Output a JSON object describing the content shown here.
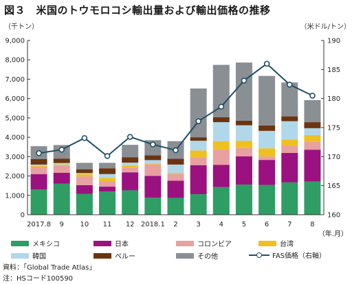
{
  "title": "図３　米国のトウモロコシ輸出量および輸出価格の推移",
  "left_unit": "（千トン）",
  "right_unit": "（米ドル/トン）",
  "x_unit": "（年.月）",
  "source": "資料：「Global Trade Atlas」",
  "note": "注：HSコード100590",
  "chart_data": {
    "type": "bar",
    "stacked": true,
    "categories": [
      "2017.8",
      "9",
      "10",
      "11",
      "12",
      "2018.1",
      "2",
      "3",
      "4",
      "5",
      "6",
      "7",
      "8"
    ],
    "ylim": [
      0,
      9000
    ],
    "y_ticks": [
      "0",
      "1,000",
      "2,000",
      "3,000",
      "4,000",
      "5,000",
      "6,000",
      "7,000",
      "8,000",
      "9,000"
    ],
    "y2lim": [
      160,
      190
    ],
    "y2_ticks": [
      "160",
      "165",
      "170",
      "175",
      "180",
      "185",
      "190"
    ],
    "grid": false,
    "series": [
      {
        "name": "メキシコ",
        "color": "#2e9e64",
        "values": [
          1300,
          1600,
          1080,
          1200,
          1260,
          880,
          870,
          1060,
          1430,
          1560,
          1540,
          1670,
          1720
        ]
      },
      {
        "name": "日本",
        "color": "#9b117f",
        "values": [
          800,
          570,
          450,
          250,
          930,
          1130,
          890,
          1500,
          1150,
          1460,
          1290,
          1520,
          1640
        ]
      },
      {
        "name": "コロンビア",
        "color": "#e8a0a0",
        "values": [
          380,
          370,
          450,
          250,
          250,
          590,
          340,
          410,
          770,
          420,
          180,
          370,
          400
        ]
      },
      {
        "name": "台湾",
        "color": "#f0c020",
        "values": [
          50,
          50,
          120,
          200,
          100,
          50,
          60,
          350,
          450,
          380,
          420,
          320,
          350
        ]
      },
      {
        "name": "韓国",
        "color": "#b0d8ea",
        "values": [
          60,
          80,
          50,
          200,
          150,
          170,
          430,
          500,
          980,
          800,
          900,
          950,
          360
        ]
      },
      {
        "name": "ペルー",
        "color": "#6b3410",
        "values": [
          280,
          230,
          200,
          300,
          280,
          250,
          300,
          180,
          260,
          240,
          280,
          250,
          310
        ]
      },
      {
        "name": "その他",
        "color": "#8a8f94",
        "values": [
          670,
          700,
          330,
          280,
          640,
          780,
          910,
          2520,
          2700,
          3000,
          2560,
          1750,
          1140
        ]
      }
    ],
    "line": {
      "name": "FAS価格（右軸）",
      "color": "#1f4e66",
      "values": [
        170.6,
        171.2,
        173.2,
        170.1,
        173.4,
        172.1,
        171.1,
        176.1,
        178.6,
        183.1,
        186.0,
        182.4,
        180.5
      ]
    }
  }
}
